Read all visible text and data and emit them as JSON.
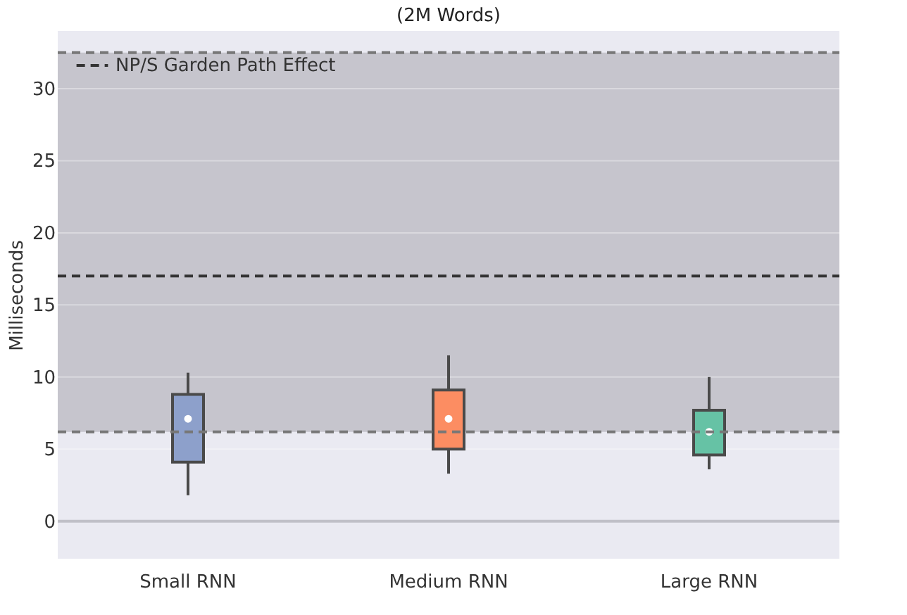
{
  "chart_data": {
    "type": "box",
    "title": "(2M Words)",
    "ylabel": "Milliseconds",
    "categories": [
      "Small RNN",
      "Medium RNN",
      "Large RNN"
    ],
    "colors": [
      "#8da0cb",
      "#fc8d62",
      "#66c2a5"
    ],
    "boxes": [
      {
        "low": 1.8,
        "q1": 4.1,
        "median": 7.1,
        "q3": 8.8,
        "high": 10.3
      },
      {
        "low": 3.3,
        "q1": 5.0,
        "median": 7.1,
        "q3": 9.1,
        "high": 11.5
      },
      {
        "low": 3.6,
        "q1": 4.6,
        "median": 6.2,
        "q3": 7.7,
        "high": 10.0
      }
    ],
    "ylim": [
      -2.6,
      34
    ],
    "yticks": [
      0,
      5,
      10,
      15,
      20,
      25,
      30
    ],
    "grid": "y",
    "legend": "top left",
    "bands": [
      {
        "axis": "y",
        "from": 6.2,
        "to": 32.5,
        "color": "#c6c5cd"
      }
    ],
    "ref_lines": [
      {
        "axis": "y",
        "value": 17,
        "label": "NP/S Garden Path Effect",
        "color": "#333333",
        "line_style": "dashed"
      },
      {
        "axis": "y",
        "value": 32.5,
        "color": "#777777",
        "line_style": "dashed"
      },
      {
        "axis": "y",
        "value": 6.2,
        "color": "#777777",
        "line_style": "dashed"
      },
      {
        "axis": "y",
        "value": 0,
        "color": "#c0c0c8",
        "line_style": "solid"
      }
    ]
  }
}
